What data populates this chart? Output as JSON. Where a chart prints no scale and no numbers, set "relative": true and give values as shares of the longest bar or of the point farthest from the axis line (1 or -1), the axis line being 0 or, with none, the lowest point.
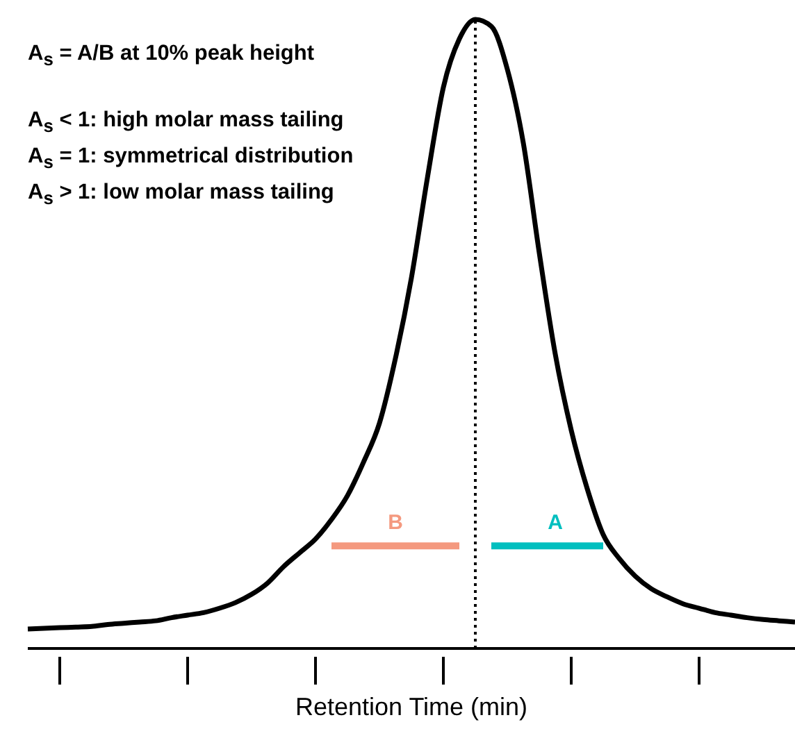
{
  "chart_data": {
    "type": "line",
    "relative": true,
    "xlabel": "Retention Time (min)",
    "marker": "none",
    "legend": false,
    "categories": [
      null,
      null,
      null,
      null,
      null,
      null,
      null,
      null,
      null,
      null,
      null,
      null,
      null,
      null,
      null,
      null,
      null,
      null,
      null,
      null,
      null,
      null,
      null,
      null,
      null,
      null,
      null,
      null,
      null,
      null,
      null,
      null,
      null,
      null,
      null,
      null,
      null,
      null,
      null,
      null,
      null,
      null,
      null,
      null,
      null,
      null,
      null,
      null,
      null
    ],
    "series": [
      {
        "color": "#000000",
        "values": [
          0.031,
          0.032,
          0.033,
          0.034,
          0.035,
          0.038,
          0.04,
          0.042,
          0.044,
          0.049,
          0.053,
          0.057,
          0.064,
          0.073,
          0.086,
          0.104,
          0.13,
          0.152,
          0.174,
          0.205,
          0.243,
          0.296,
          0.358,
          0.461,
          0.589,
          0.748,
          0.892,
          0.969,
          1,
          0.989,
          0.921,
          0.804,
          0.629,
          0.468,
          0.347,
          0.254,
          0.181,
          0.143,
          0.115,
          0.095,
          0.082,
          0.071,
          0.064,
          0.057,
          0.053,
          0.049,
          0.046,
          0.044,
          0.042
        ]
      },
      {
        "name": "B",
        "color": "#f4997f",
        "values": [
          null,
          null,
          null,
          null,
          null,
          null,
          null,
          null,
          null,
          null,
          null,
          null,
          null,
          null,
          null,
          null,
          null,
          null,
          null,
          0.163,
          0.163,
          0.163,
          0.163,
          0.163,
          0.163,
          0.163,
          0.163,
          0.163,
          null,
          null,
          null,
          null,
          null,
          null,
          null,
          null,
          null,
          null,
          null,
          null,
          null,
          null,
          null,
          null,
          null,
          null,
          null,
          null,
          null
        ]
      },
      {
        "name": "A",
        "color": "#00bfbf",
        "values": [
          null,
          null,
          null,
          null,
          null,
          null,
          null,
          null,
          null,
          null,
          null,
          null,
          null,
          null,
          null,
          null,
          null,
          null,
          null,
          null,
          null,
          null,
          null,
          null,
          null,
          null,
          null,
          null,
          null,
          0.163,
          0.163,
          0.163,
          0.163,
          0.163,
          0.163,
          0.163,
          0.163,
          null,
          null,
          null,
          null,
          null,
          null,
          null,
          null,
          null,
          null,
          null,
          null
        ]
      }
    ],
    "ref_lines": [
      {
        "axis": "x",
        "line_style": "dotted",
        "color": "#000000"
      }
    ],
    "annotations": [
      "A$_{s}$ = A/B at 10% peak height",
      "A$_{s}$ < 1: high molar mass tailing",
      "A$_{s}$ = 1: symmetrical distribution",
      "A$_{s}$ > 1: low molar mass tailing"
    ]
  }
}
